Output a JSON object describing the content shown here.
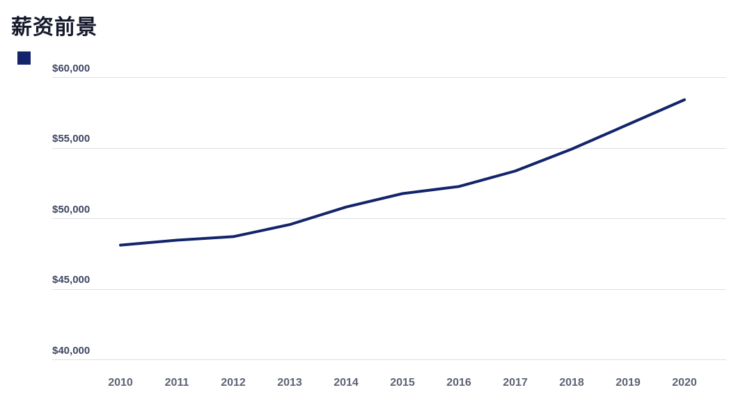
{
  "page": {
    "title": "薪资前景"
  },
  "legend": {
    "swatch_color": "#13246b",
    "label": ""
  },
  "chart_data": {
    "type": "line",
    "title": "薪资前景",
    "categories": [
      "2010",
      "2011",
      "2012",
      "2013",
      "2014",
      "2015",
      "2016",
      "2017",
      "2018",
      "2019",
      "2020"
    ],
    "values": [
      48100,
      48450,
      48700,
      49550,
      50800,
      51750,
      52250,
      53350,
      54900,
      56650,
      58400
    ],
    "xlabel": "",
    "ylabel": "",
    "y_tick_labels": [
      "$60,000",
      "$55,000",
      "$50,000",
      "$45,000",
      "$40,000"
    ],
    "y_tick_values": [
      60000,
      55000,
      50000,
      45000,
      40000
    ],
    "ylim": [
      40000,
      60000
    ],
    "grid": "horizontal",
    "legend_position": "top-left",
    "line_color": "#13246b",
    "values_are_estimates": "read from pixels against $5,000 gridlines"
  }
}
